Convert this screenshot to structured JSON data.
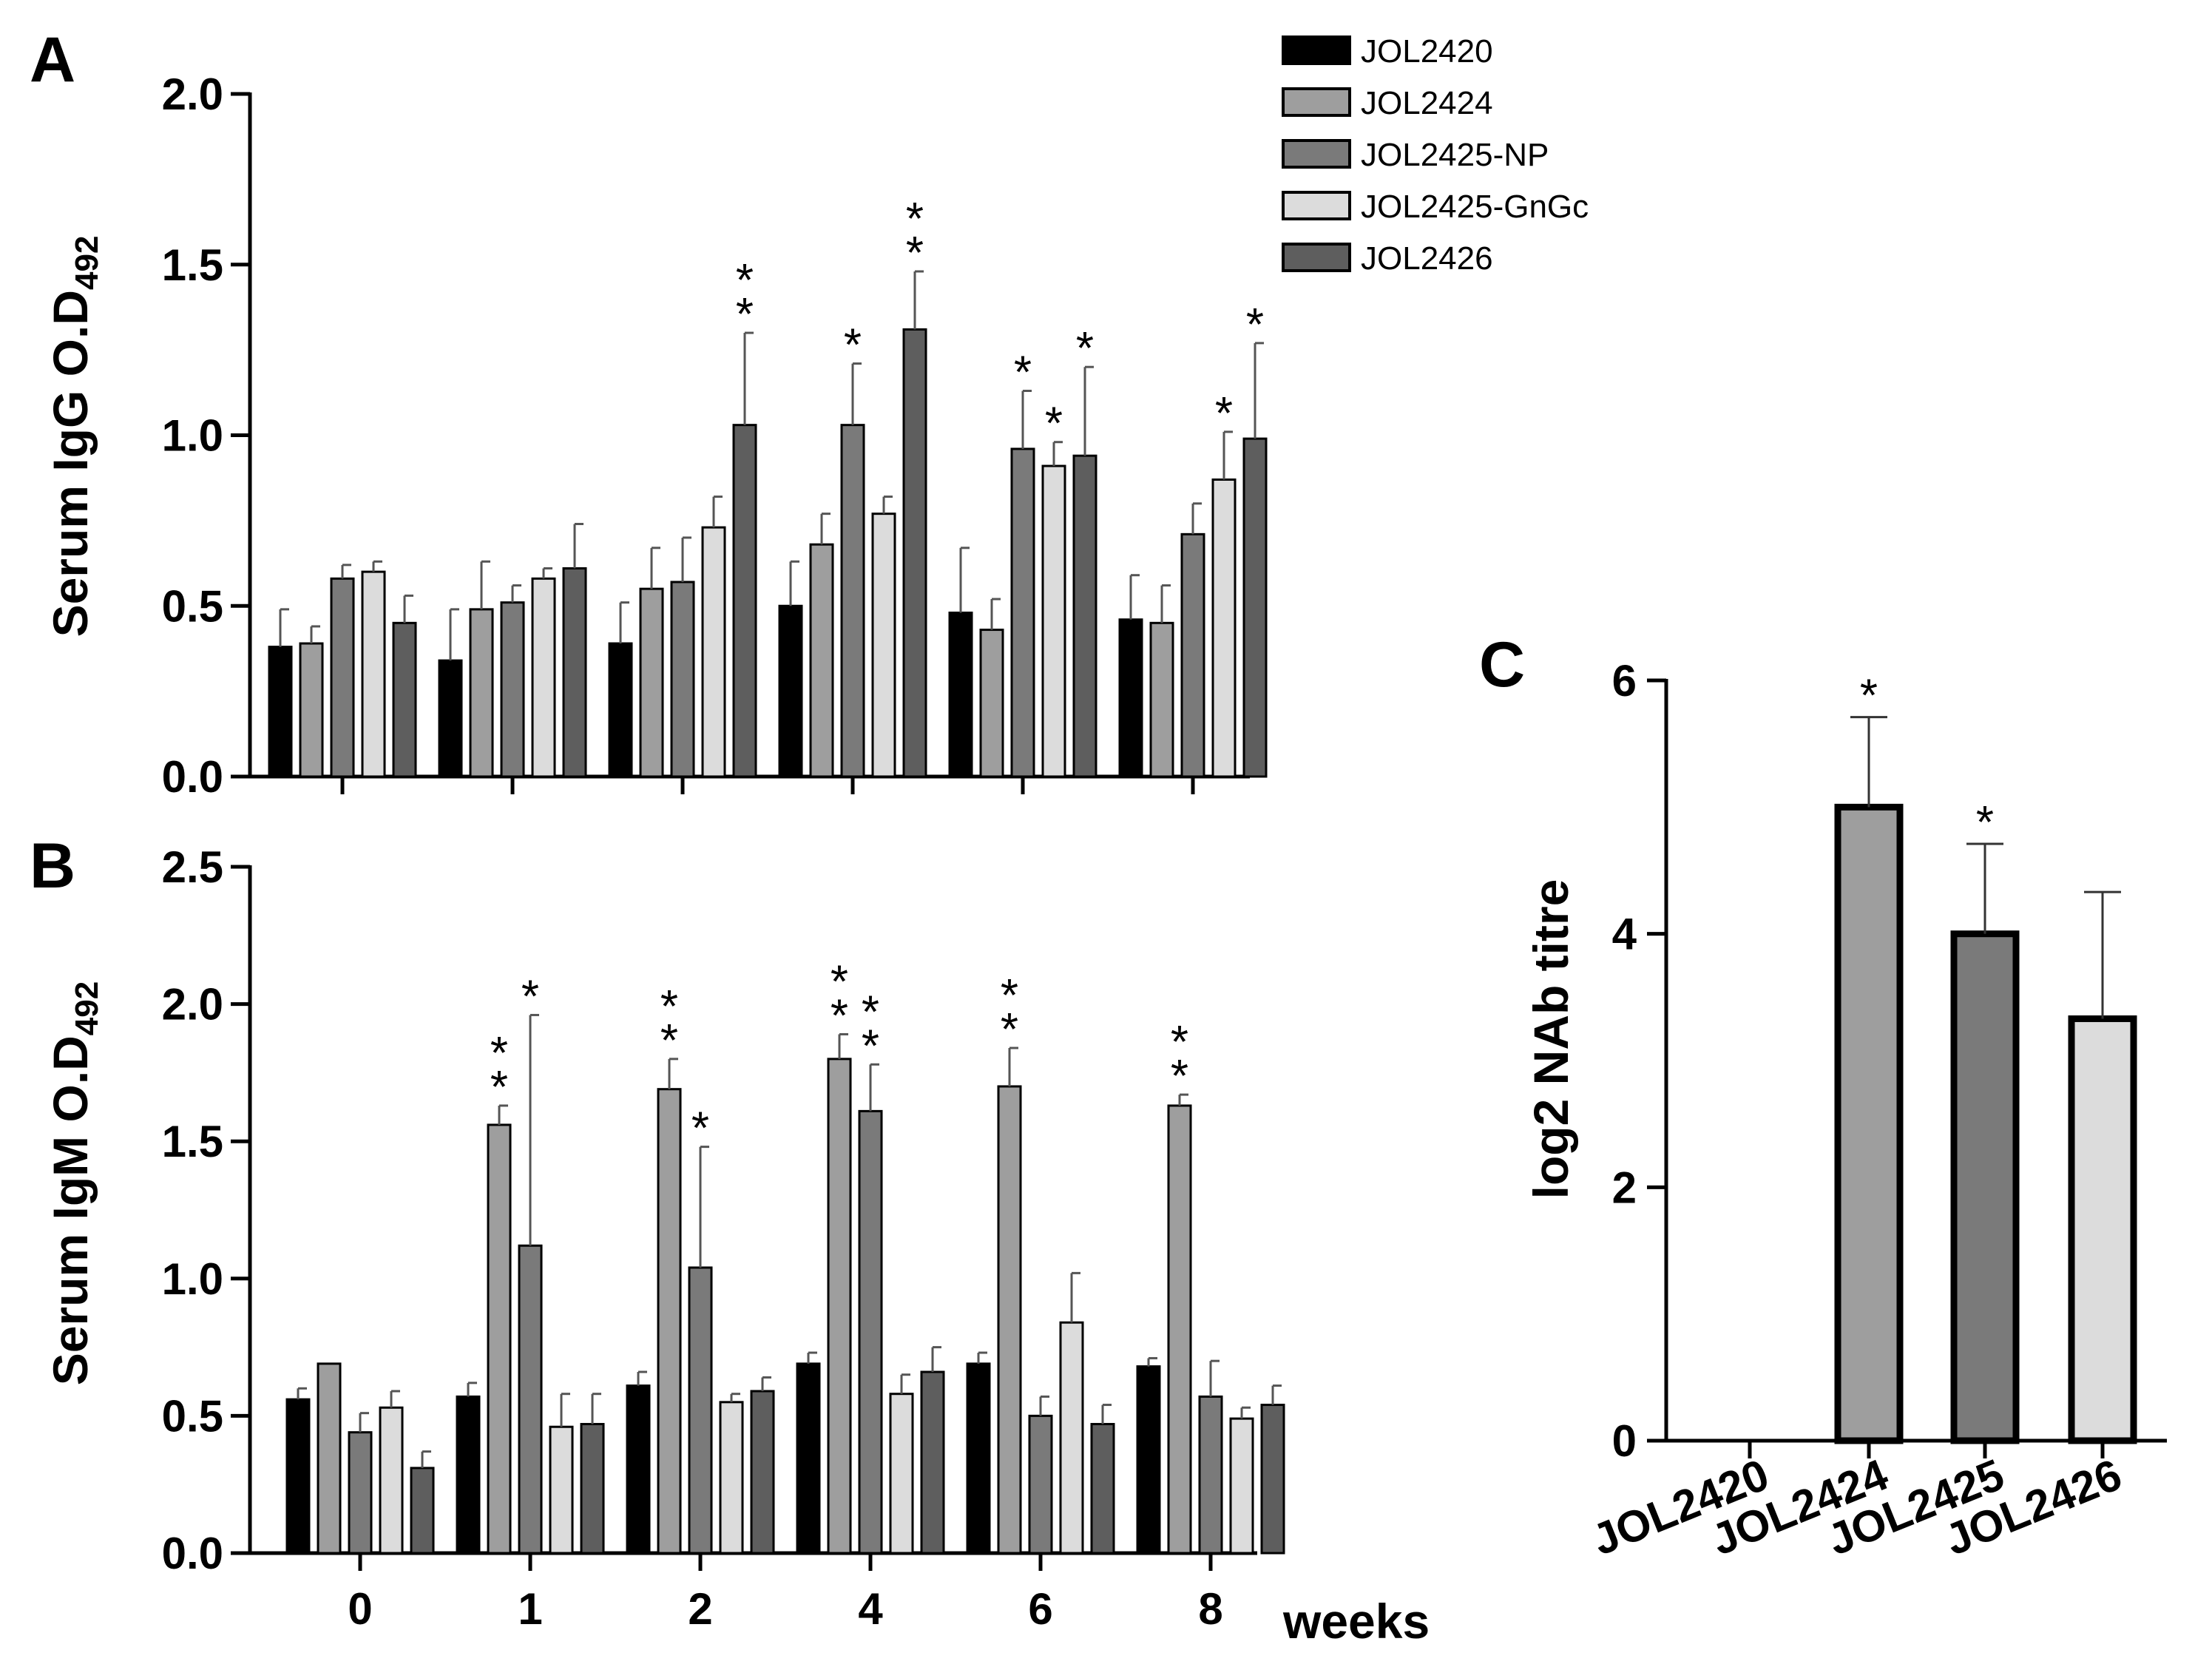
{
  "legend": {
    "items": [
      {
        "label": "JOL2420",
        "color": "#000000"
      },
      {
        "label": "JOL2424",
        "color": "#9e9e9e"
      },
      {
        "label": "JOL2425-NP",
        "color": "#7a7a7a"
      },
      {
        "label": "JOL2425-GnGc",
        "color": "#dcdcdc"
      },
      {
        "label": "JOL2426",
        "color": "#5e5e5e"
      }
    ]
  },
  "chart_data": [
    {
      "panel": "A",
      "type": "bar",
      "ylabel": "Serum IgG O.D",
      "ylabel_sub": "492",
      "ylim": [
        0,
        2.0
      ],
      "yticks": [
        "0.0",
        "0.5",
        "1.0",
        "1.5",
        "2.0"
      ],
      "categories": [
        "0",
        "1",
        "2",
        "4",
        "6",
        "8"
      ],
      "series": [
        {
          "name": "JOL2420",
          "values": [
            0.38,
            0.34,
            0.39,
            0.5,
            0.48,
            0.46
          ],
          "errors": [
            0.11,
            0.15,
            0.12,
            0.13,
            0.19,
            0.13
          ],
          "stars": [
            0,
            0,
            0,
            0,
            0,
            0
          ]
        },
        {
          "name": "JOL2424",
          "values": [
            0.39,
            0.49,
            0.55,
            0.68,
            0.43,
            0.45
          ],
          "errors": [
            0.05,
            0.14,
            0.12,
            0.09,
            0.09,
            0.11
          ],
          "stars": [
            0,
            0,
            0,
            0,
            0,
            0
          ]
        },
        {
          "name": "JOL2425-NP",
          "values": [
            0.58,
            0.51,
            0.57,
            1.03,
            0.96,
            0.71
          ],
          "errors": [
            0.04,
            0.05,
            0.13,
            0.18,
            0.17,
            0.09
          ],
          "stars": [
            0,
            0,
            0,
            1,
            1,
            0
          ]
        },
        {
          "name": "JOL2425-GnGc",
          "values": [
            0.6,
            0.58,
            0.73,
            0.77,
            0.91,
            0.87
          ],
          "errors": [
            0.03,
            0.03,
            0.09,
            0.05,
            0.07,
            0.14
          ],
          "stars": [
            0,
            0,
            0,
            0,
            1,
            1
          ]
        },
        {
          "name": "JOL2426",
          "values": [
            0.45,
            0.61,
            1.03,
            1.31,
            0.94,
            0.99
          ],
          "errors": [
            0.08,
            0.13,
            0.27,
            0.17,
            0.26,
            0.28
          ],
          "stars": [
            0,
            0,
            2,
            2,
            1,
            1
          ]
        }
      ]
    },
    {
      "panel": "B",
      "type": "bar",
      "ylabel": "Serum IgM O.D",
      "ylabel_sub": "492",
      "xlabel": "weeks",
      "ylim": [
        0,
        2.5
      ],
      "yticks": [
        "0.0",
        "0.5",
        "1.0",
        "1.5",
        "2.0",
        "2.5"
      ],
      "categories": [
        "0",
        "1",
        "2",
        "4",
        "6",
        "8"
      ],
      "series": [
        {
          "name": "JOL2420",
          "values": [
            0.56,
            0.57,
            0.61,
            0.69,
            0.69,
            0.68
          ],
          "errors": [
            0.04,
            0.05,
            0.05,
            0.04,
            0.04,
            0.03
          ],
          "stars": [
            0,
            0,
            0,
            0,
            0,
            0
          ]
        },
        {
          "name": "JOL2424",
          "values": [
            0.69,
            1.56,
            1.69,
            1.8,
            1.7,
            1.63
          ],
          "errors": [
            0.0,
            0.07,
            0.11,
            0.09,
            0.14,
            0.04
          ],
          "stars": [
            0,
            2,
            2,
            2,
            2,
            2
          ]
        },
        {
          "name": "JOL2425-NP",
          "values": [
            0.44,
            1.12,
            1.04,
            1.61,
            0.5,
            0.57
          ],
          "errors": [
            0.07,
            0.84,
            0.44,
            0.17,
            0.07,
            0.13
          ],
          "stars": [
            0,
            1,
            1,
            2,
            0,
            0
          ]
        },
        {
          "name": "JOL2425-GnGc",
          "values": [
            0.53,
            0.46,
            0.55,
            0.58,
            0.84,
            0.49
          ],
          "errors": [
            0.06,
            0.12,
            0.03,
            0.07,
            0.18,
            0.04
          ],
          "stars": [
            0,
            0,
            0,
            0,
            0,
            0
          ]
        },
        {
          "name": "JOL2426",
          "values": [
            0.31,
            0.47,
            0.59,
            0.66,
            0.47,
            0.54
          ],
          "errors": [
            0.06,
            0.11,
            0.05,
            0.09,
            0.07,
            0.07
          ],
          "stars": [
            0,
            0,
            0,
            0,
            0,
            0
          ]
        }
      ]
    },
    {
      "panel": "C",
      "type": "bar",
      "ylabel": "log2 NAb titre",
      "ylim": [
        0,
        6
      ],
      "yticks": [
        "0",
        "2",
        "4",
        "6"
      ],
      "categories": [
        "JOL2420",
        "JOL2424",
        "JOL2425",
        "JOL2426"
      ],
      "values": [
        0,
        5.0,
        4.0,
        3.33
      ],
      "errors": [
        0,
        0.71,
        0.71,
        1.0
      ],
      "stars": [
        0,
        1,
        1,
        0
      ],
      "colors": [
        "#000000",
        "#9e9e9e",
        "#7a7a7a",
        "#dcdcdc"
      ]
    }
  ]
}
